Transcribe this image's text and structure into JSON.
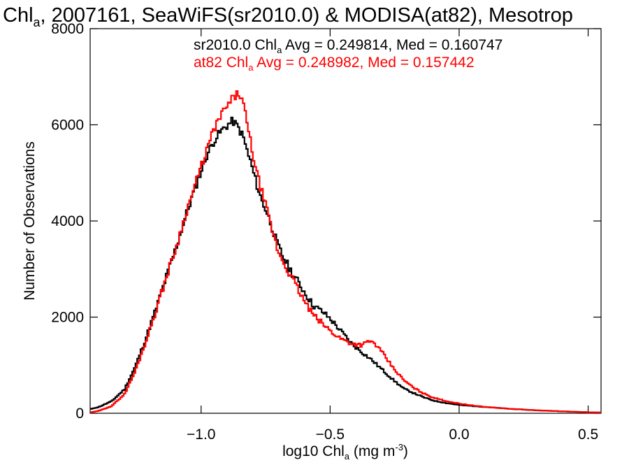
{
  "chart_data": {
    "type": "line",
    "title": {
      "prefix": "Chl",
      "sub": "a",
      "rest": ", 2007161, SeaWiFS(sr2010.0) & MODISA(at82), Mesotrop"
    },
    "xlabel": {
      "prefix": "log10 Chl",
      "sub": "a",
      "mid": " (mg m",
      "sup": "-3",
      "suffix": ")"
    },
    "ylabel": "Number of Observations",
    "xlim": [
      -1.43,
      0.55
    ],
    "ylim": [
      0,
      8000
    ],
    "xticks": [
      -1.0,
      -0.5,
      0.0,
      0.5
    ],
    "xtick_labels": [
      "−1.0",
      "−0.5",
      "0.0",
      "0.5"
    ],
    "yticks": [
      0,
      2000,
      4000,
      6000,
      8000
    ],
    "ytick_labels": [
      "0",
      "2000",
      "4000",
      "6000",
      "8000"
    ],
    "grid": false,
    "legend_position": "top-right",
    "series": [
      {
        "color": "#000000",
        "legend": {
          "prefix": "sr2010.0 Chl",
          "sub": "a",
          "suffix": " Avg = 0.249814, Med = 0.160747"
        },
        "x": [
          -1.43,
          -1.4,
          -1.35,
          -1.3,
          -1.26,
          -1.22,
          -1.18,
          -1.14,
          -1.1,
          -1.06,
          -1.02,
          -0.98,
          -0.95,
          -0.92,
          -0.9,
          -0.88,
          -0.86,
          -0.85,
          -0.84,
          -0.83,
          -0.81,
          -0.79,
          -0.77,
          -0.75,
          -0.73,
          -0.71,
          -0.69,
          -0.66,
          -0.63,
          -0.6,
          -0.57,
          -0.53,
          -0.5,
          -0.46,
          -0.42,
          -0.38,
          -0.34,
          -0.3,
          -0.26,
          -0.22,
          -0.18,
          -0.14,
          -0.1,
          -0.05,
          0.0,
          0.05,
          0.1,
          0.15,
          0.2,
          0.25,
          0.3,
          0.35,
          0.4,
          0.45,
          0.5,
          0.55
        ],
        "y": [
          90,
          130,
          250,
          500,
          950,
          1520,
          2140,
          2800,
          3450,
          4150,
          4780,
          5380,
          5700,
          5900,
          6000,
          6080,
          5950,
          5850,
          5750,
          5550,
          5200,
          4800,
          4450,
          4200,
          3900,
          3550,
          3300,
          3000,
          2750,
          2500,
          2250,
          2100,
          1950,
          1700,
          1450,
          1270,
          1100,
          900,
          700,
          520,
          420,
          330,
          260,
          210,
          170,
          150,
          130,
          110,
          90,
          75,
          60,
          50,
          40,
          30,
          20,
          15
        ]
      },
      {
        "color": "#ff0000",
        "legend": {
          "prefix": "at82 Chl",
          "sub": "a",
          "suffix": " Avg = 0.248982, Med = 0.157442"
        },
        "x": [
          -1.43,
          -1.4,
          -1.35,
          -1.3,
          -1.26,
          -1.22,
          -1.18,
          -1.14,
          -1.1,
          -1.06,
          -1.02,
          -0.98,
          -0.95,
          -0.92,
          -0.9,
          -0.88,
          -0.86,
          -0.85,
          -0.84,
          -0.83,
          -0.81,
          -0.79,
          -0.77,
          -0.75,
          -0.73,
          -0.71,
          -0.69,
          -0.66,
          -0.63,
          -0.6,
          -0.57,
          -0.53,
          -0.5,
          -0.46,
          -0.42,
          -0.38,
          -0.35,
          -0.33,
          -0.3,
          -0.26,
          -0.22,
          -0.18,
          -0.14,
          -0.1,
          -0.05,
          0.0,
          0.05,
          0.1,
          0.15,
          0.2,
          0.25,
          0.3,
          0.35,
          0.4,
          0.45,
          0.5,
          0.55
        ],
        "y": [
          20,
          50,
          150,
          400,
          850,
          1450,
          2100,
          2800,
          3450,
          4200,
          4850,
          5500,
          5950,
          6250,
          6400,
          6550,
          6650,
          6600,
          6450,
          6150,
          5600,
          5050,
          4650,
          4250,
          3850,
          3450,
          3200,
          2900,
          2600,
          2300,
          2050,
          1850,
          1700,
          1550,
          1450,
          1420,
          1500,
          1450,
          1250,
          950,
          700,
          530,
          410,
          320,
          250,
          200,
          160,
          130,
          110,
          90,
          75,
          60,
          50,
          40,
          30,
          20,
          15
        ]
      }
    ]
  }
}
